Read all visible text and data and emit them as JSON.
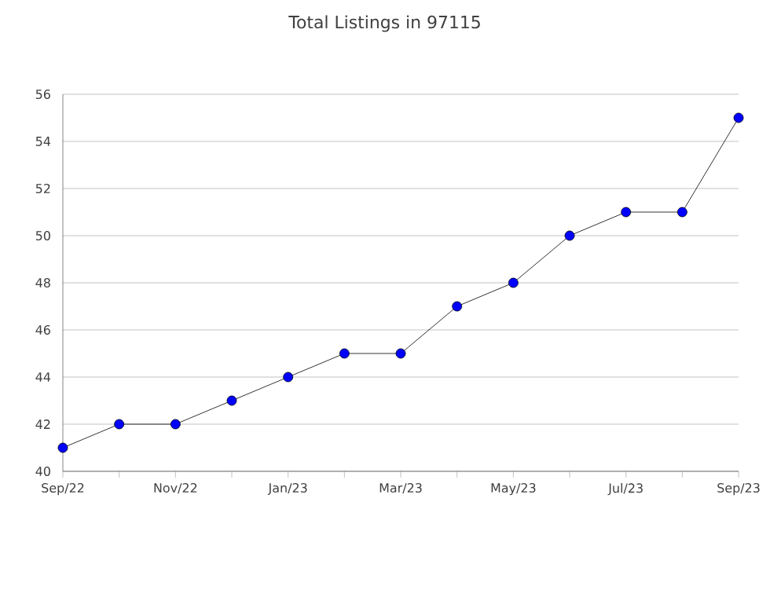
{
  "chart_data": {
    "type": "line",
    "title": "Total Listings in 97115",
    "categories": [
      "Sep/22",
      null,
      "Nov/22",
      null,
      "Jan/23",
      null,
      "Mar/23",
      null,
      "May/23",
      null,
      "Jul/23",
      null,
      "Sep/23"
    ],
    "series": [
      {
        "color": "#0000ff",
        "values": [
          41,
          42,
          42,
          43,
          44,
          45,
          45,
          47,
          48,
          50,
          51,
          51,
          55
        ]
      }
    ],
    "ylim": [
      40,
      56
    ],
    "yticks": [
      40,
      42,
      44,
      46,
      48,
      50,
      52,
      54,
      56
    ],
    "grid": "y",
    "marker": "circle",
    "line_style": "solid"
  }
}
